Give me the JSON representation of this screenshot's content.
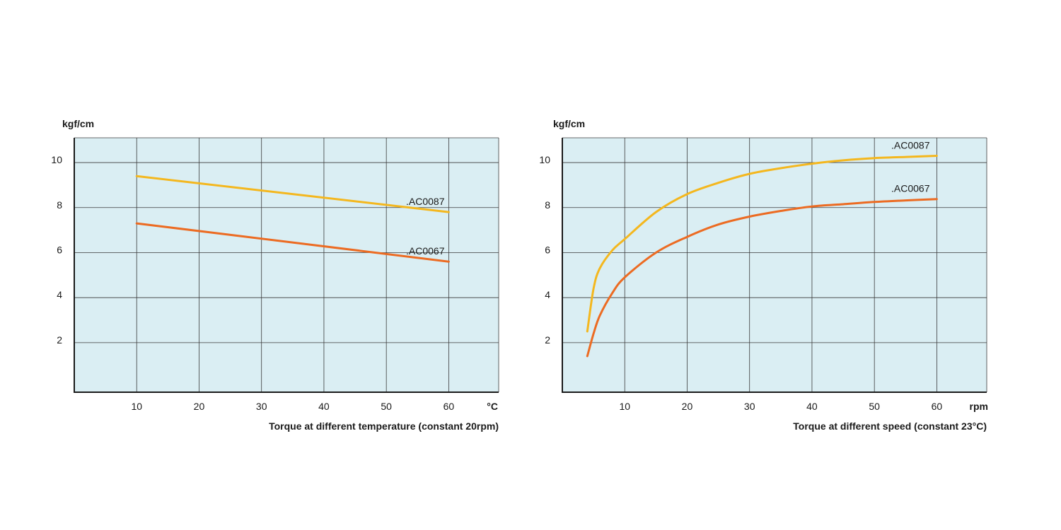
{
  "chart_data": [
    {
      "type": "line",
      "title": "Torque at different temperature (constant 20rpm)",
      "ylabel": "kgf/cm",
      "xlabel": "°C",
      "x_ticks": [
        10,
        20,
        30,
        40,
        50,
        60
      ],
      "y_ticks": [
        2,
        4,
        6,
        8,
        10
      ],
      "xlim": [
        0,
        68
      ],
      "ylim": [
        -0.2,
        11.1
      ],
      "grid": true,
      "series": [
        {
          "name": ".AC0087",
          "color": "#f4b71e",
          "x": [
            10,
            60
          ],
          "y": [
            9.4,
            7.8
          ]
        },
        {
          "name": ".AC0067",
          "color": "#ec6b22",
          "x": [
            10,
            60
          ],
          "y": [
            7.3,
            5.6
          ]
        }
      ]
    },
    {
      "type": "line",
      "title": "Torque at different speed (constant 23°C)",
      "ylabel": "kgf/cm",
      "xlabel": "rpm",
      "x_ticks": [
        10,
        20,
        30,
        40,
        50,
        60
      ],
      "y_ticks": [
        2,
        4,
        6,
        8,
        10
      ],
      "xlim": [
        0,
        68
      ],
      "ylim": [
        -0.2,
        11.1
      ],
      "grid": true,
      "series": [
        {
          "name": ".AC0087",
          "color": "#f4b71e",
          "x": [
            4,
            5,
            6,
            8,
            10,
            15,
            20,
            25,
            30,
            35,
            40,
            45,
            50,
            55,
            60
          ],
          "y": [
            2.5,
            4.4,
            5.3,
            6.1,
            6.6,
            7.8,
            8.6,
            9.1,
            9.5,
            9.75,
            9.95,
            10.1,
            10.2,
            10.25,
            10.3
          ]
        },
        {
          "name": ".AC0067",
          "color": "#ec6b22",
          "x": [
            4,
            5,
            6,
            8,
            10,
            15,
            20,
            25,
            30,
            35,
            40,
            45,
            50,
            55,
            60
          ],
          "y": [
            1.4,
            2.4,
            3.2,
            4.2,
            4.9,
            6.0,
            6.7,
            7.25,
            7.6,
            7.85,
            8.05,
            8.15,
            8.25,
            8.32,
            8.38
          ]
        }
      ]
    }
  ]
}
